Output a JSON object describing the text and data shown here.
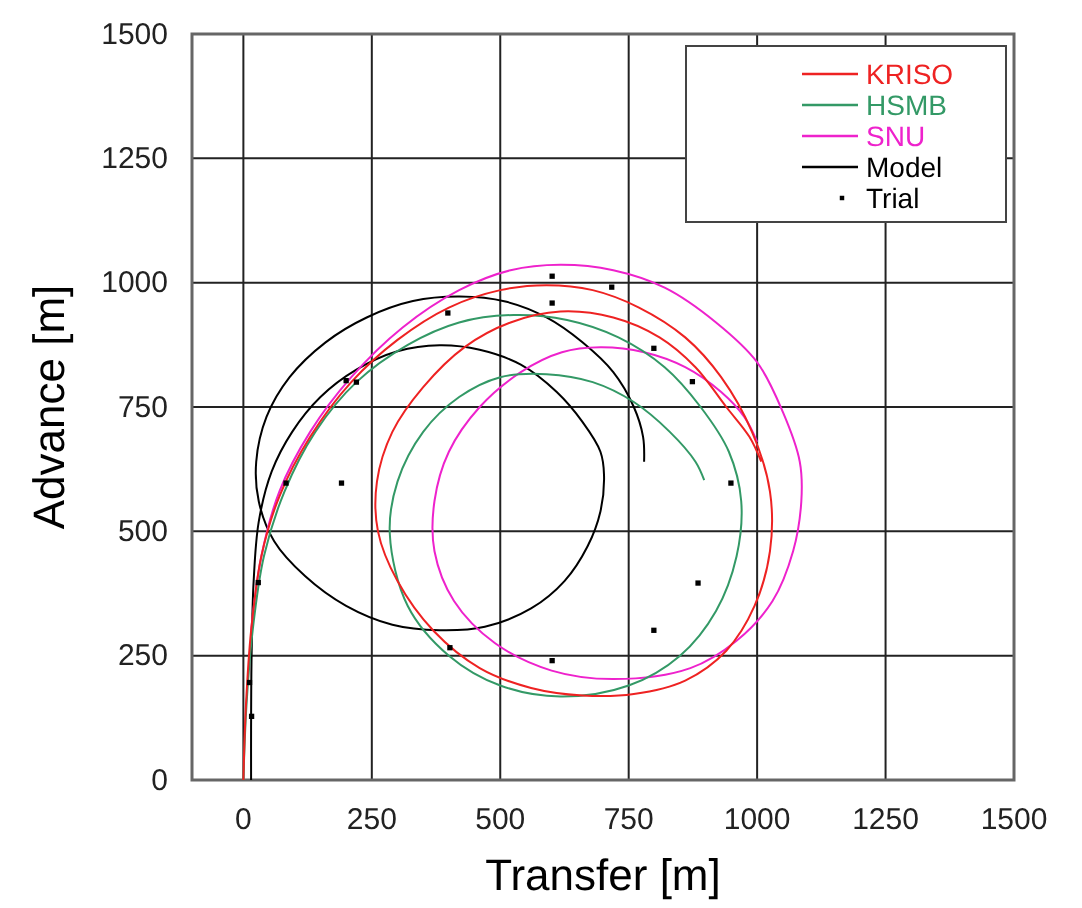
{
  "chart_data": {
    "type": "line",
    "xlabel": "Transfer [m]",
    "ylabel": "Advance [m]",
    "xlim": [
      -100,
      1500
    ],
    "xticks": [
      0,
      250,
      500,
      750,
      1000,
      1250,
      1500
    ],
    "ylim": [
      0,
      1500
    ],
    "yticks": [
      0,
      250,
      500,
      750,
      1000,
      1250,
      1500
    ],
    "grid": true,
    "legend": "top right",
    "series": [
      {
        "name": "KRISO",
        "color": "#ee2222",
        "x": [
          0,
          5,
          15,
          35,
          70,
          130,
          210,
          300,
          400,
          500,
          590,
          680,
          770,
          860,
          930,
          990,
          1025,
          1025,
          995,
          940,
          860,
          760,
          660,
          560,
          460,
          370,
          300,
          262,
          260,
          290,
          350,
          430,
          520,
          617,
          720,
          810,
          880,
          940,
          985,
          1008
        ],
        "values": [
          0,
          150,
          300,
          450,
          570,
          690,
          800,
          885,
          950,
          985,
          995,
          985,
          950,
          890,
          810,
          700,
          580,
          460,
          350,
          260,
          200,
          173,
          170,
          185,
          225,
          300,
          400,
          500,
          600,
          700,
          790,
          870,
          920,
          942,
          930,
          890,
          830,
          750,
          690,
          640
        ]
      },
      {
        "name": "HSMB",
        "color": "#339966",
        "x": [
          0,
          6,
          18,
          40,
          80,
          140,
          220,
          320,
          420,
          526,
          630,
          730,
          820,
          890,
          945,
          969,
          960,
          920,
          850,
          750,
          617,
          500,
          400,
          320,
          285,
          300,
          350,
          420,
          500,
          590,
          680,
          760,
          830,
          880,
          897
        ],
        "values": [
          0,
          150,
          300,
          450,
          580,
          700,
          800,
          875,
          920,
          935,
          925,
          890,
          830,
          750,
          660,
          561,
          450,
          340,
          250,
          190,
          168,
          190,
          250,
          350,
          495,
          600,
          700,
          770,
          810,
          816,
          800,
          760,
          700,
          640,
          603
        ]
      },
      {
        "name": "SNU",
        "color": "#ee22cc",
        "x": [
          15,
          35,
          70,
          130,
          210,
          310,
          420,
          520,
          617,
          720,
          820,
          920,
          1000,
          1050,
          1083,
          1086,
          1070,
          1030,
          960,
          870,
          721,
          600,
          490,
          410,
          372,
          372,
          400,
          460,
          540,
          620,
          695,
          780,
          860,
          930,
          975,
          1000
        ],
        "values": [
          300,
          450,
          580,
          700,
          810,
          910,
          985,
          1025,
          1036,
          1025,
          990,
          920,
          840,
          740,
          640,
          560,
          460,
          360,
          280,
          225,
          203,
          220,
          275,
          360,
          460,
          561,
          660,
          750,
          820,
          860,
          870,
          860,
          830,
          780,
          730,
          680
        ]
      },
      {
        "name": "Model",
        "color": "#000000",
        "x": [
          15,
          15,
          16,
          20,
          30,
          55,
          95,
          150,
          220,
          300,
          382,
          460,
          540,
          610,
          660,
          695,
          702,
          695,
          670,
          625,
          560,
          470,
          382,
          290,
          200,
          120,
          60,
          30,
          25,
          45,
          90,
          160,
          240,
          330,
          421,
          510,
          590,
          660,
          720,
          760,
          778,
          780
        ],
        "values": [
          0,
          100,
          250,
          400,
          520,
          620,
          700,
          770,
          825,
          862,
          874,
          865,
          835,
          780,
          720,
          660,
          613,
          540,
          470,
          400,
          345,
          308,
          301,
          312,
          350,
          410,
          480,
          560,
          640,
          730,
          810,
          880,
          930,
          963,
          972,
          962,
          930,
          880,
          820,
          750,
          690,
          640
        ]
      },
      {
        "name": "Trial",
        "color": "#000000",
        "type": "scatter",
        "marker": "square",
        "x": [
          12,
          16,
          29,
          83,
          191,
          200,
          220,
          398,
          402,
          601,
          601,
          601,
          717,
          799,
          799,
          874,
          885,
          949
        ],
        "values": [
          196,
          128,
          397,
          597,
          597,
          803,
          800,
          939,
          266,
          1013,
          959,
          240,
          991,
          868,
          301,
          801,
          396,
          597
        ]
      }
    ]
  }
}
